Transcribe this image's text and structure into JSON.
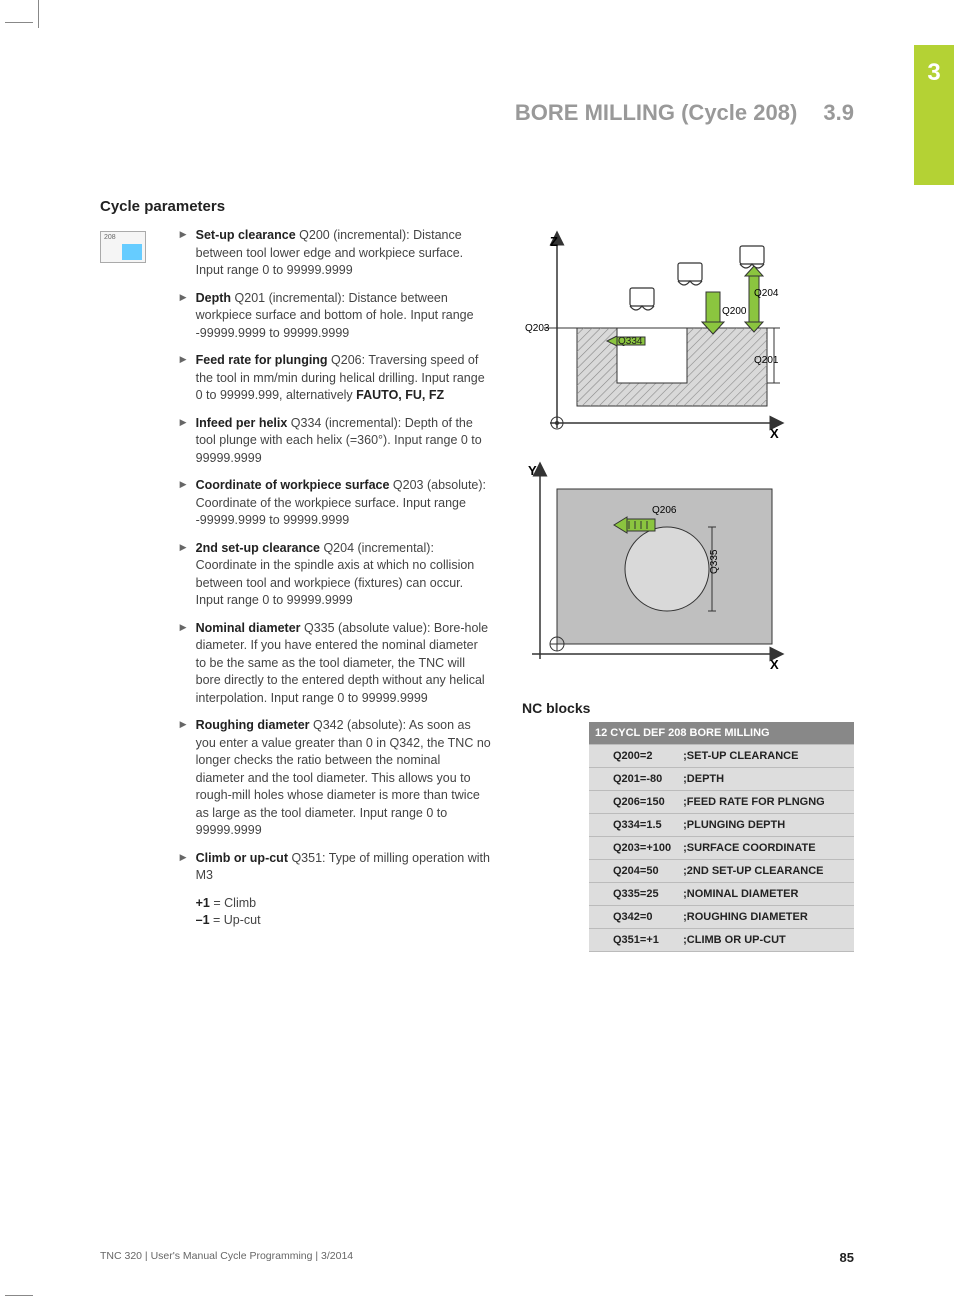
{
  "chapter_tab": "3",
  "header": {
    "title": "BORE MILLING (Cycle 208)",
    "section": "3.9"
  },
  "section_title": "Cycle parameters",
  "icon_label": "208",
  "parameters": [
    {
      "term": "Set-up clearance",
      "code": "Q200 (incremental)",
      "text": ": Distance between tool lower edge and workpiece surface. Input range 0 to 99999.9999"
    },
    {
      "term": "Depth",
      "code": "Q201 (incremental)",
      "text": ": Distance between workpiece surface and bottom of hole. Input range -99999.9999 to 99999.9999"
    },
    {
      "term": "Feed rate for plunging",
      "code": "Q206",
      "text": ": Traversing speed of the tool in mm/min during helical drilling. Input range 0 to 99999.999, alternatively ",
      "tail_bold": "FAUTO, FU, FZ"
    },
    {
      "term": "Infeed per helix",
      "code": "Q334 (incremental)",
      "text": ": Depth of the tool plunge with each helix (=360°). Input range 0 to 99999.9999"
    },
    {
      "term": "Coordinate of workpiece surface",
      "code": "Q203 (absolute)",
      "text": ": Coordinate of the workpiece surface. Input range -99999.9999 to 99999.9999"
    },
    {
      "term": "2nd set-up clearance",
      "code": "Q204 (incremental)",
      "text": ": Coordinate in the spindle axis at which no collision between tool and workpiece (fixtures) can occur. Input range 0 to 99999.9999"
    },
    {
      "term": "Nominal diameter",
      "code": "Q335 (absolute value)",
      "text": ": Bore-hole diameter. If you have entered the nominal diameter to be the same as the tool diameter, the TNC will bore directly to the entered depth without any helical interpolation. Input range 0 to 99999.9999"
    },
    {
      "term": "Roughing diameter",
      "code": "Q342 (absolute)",
      "text": ": As soon as you enter a value greater than 0 in Q342, the TNC no longer checks the ratio between the nominal diameter and the tool diameter. This allows you to rough-mill holes whose diameter is more than twice as large as the tool diameter. Input range 0 to 99999.9999"
    },
    {
      "term": "Climb or up-cut",
      "code": "Q351",
      "text": ": Type of milling operation with M3"
    }
  ],
  "climb_lines": [
    {
      "bold": "+1",
      "rest": " = Climb"
    },
    {
      "bold": "–1",
      "rest": " = Up-cut"
    }
  ],
  "diagram1": {
    "axes": {
      "v": "Z",
      "h": "X"
    },
    "labels": {
      "Q203": "Q203",
      "Q334": "Q334",
      "Q200": "Q200",
      "Q204": "Q204",
      "Q201": "Q201"
    },
    "colors": {
      "arrow": "#8bc53f",
      "arrow_stroke": "#333",
      "hatch": "#888",
      "bg": "#d9d9d9"
    }
  },
  "diagram2": {
    "axes": {
      "v": "Y",
      "h": "X"
    },
    "labels": {
      "Q206": "Q206",
      "Q335": "Q335"
    },
    "colors": {
      "arrow": "#8bc53f",
      "bg": "#bfbfbf",
      "circle": "#d9d9d9"
    }
  },
  "nc": {
    "title": "NC blocks",
    "header": "12 CYCL DEF 208 BORE MILLING",
    "rows": [
      {
        "p": "Q200=2",
        "c": ";SET-UP CLEARANCE"
      },
      {
        "p": "Q201=-80",
        "c": ";DEPTH"
      },
      {
        "p": "Q206=150",
        "c": ";FEED RATE FOR PLNGNG"
      },
      {
        "p": "Q334=1.5",
        "c": ";PLUNGING DEPTH"
      },
      {
        "p": "Q203=+100",
        "c": ";SURFACE COORDINATE"
      },
      {
        "p": "Q204=50",
        "c": ";2ND SET-UP CLEARANCE"
      },
      {
        "p": "Q335=25",
        "c": ";NOMINAL DIAMETER"
      },
      {
        "p": "Q342=0",
        "c": ";ROUGHING DIAMETER"
      },
      {
        "p": "Q351=+1",
        "c": ";CLIMB OR UP-CUT"
      }
    ]
  },
  "footer": {
    "text": "TNC 320 | User's Manual Cycle Programming | 3/2014",
    "page": "85"
  }
}
